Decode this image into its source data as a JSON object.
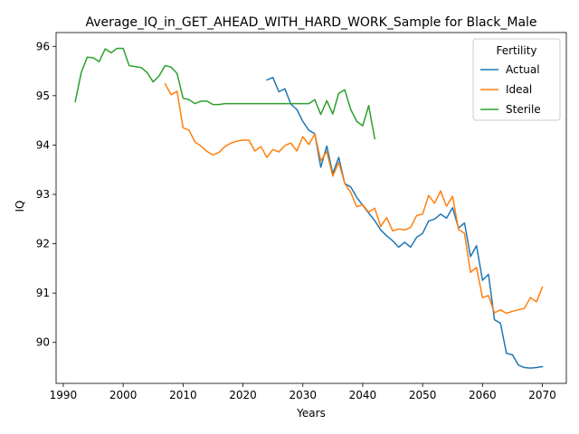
{
  "chart_data": {
    "type": "line",
    "title": "Average_IQ_in_GET_AHEAD_WITH_HARD_WORK_Sample for Black_Male",
    "xlabel": "Years",
    "ylabel": "IQ",
    "xlim": [
      1988.8,
      2074
    ],
    "ylim": [
      89.17,
      96.28
    ],
    "xticks": [
      1990,
      2000,
      2010,
      2020,
      2030,
      2040,
      2050,
      2060,
      2070
    ],
    "yticks": [
      90,
      91,
      92,
      93,
      94,
      95,
      96
    ],
    "grid": false,
    "legend": {
      "title": "Fertility",
      "position": "top-right"
    },
    "series": [
      {
        "name": "Actual",
        "color": "#1f77b4",
        "x": [
          2024,
          2025,
          2026,
          2027,
          2028,
          2029,
          2030,
          2031,
          2032,
          2033,
          2034,
          2035,
          2036,
          2037,
          2038,
          2039,
          2040,
          2041,
          2042,
          2043,
          2044,
          2045,
          2046,
          2047,
          2048,
          2049,
          2050,
          2051,
          2052,
          2053,
          2054,
          2055,
          2056,
          2057,
          2058,
          2059,
          2060,
          2061,
          2062,
          2063,
          2064,
          2065,
          2066,
          2067,
          2068,
          2069,
          2070
        ],
        "y": [
          95.32,
          95.37,
          95.08,
          95.14,
          94.83,
          94.72,
          94.48,
          94.3,
          94.23,
          93.55,
          93.98,
          93.42,
          93.75,
          93.22,
          93.15,
          92.94,
          92.78,
          92.62,
          92.47,
          92.28,
          92.16,
          92.06,
          91.93,
          92.03,
          91.93,
          92.13,
          92.21,
          92.46,
          92.5,
          92.6,
          92.52,
          92.73,
          92.32,
          92.42,
          91.74,
          91.96,
          91.26,
          91.38,
          90.46,
          90.39,
          89.78,
          89.75,
          89.54,
          89.49,
          89.48,
          89.49,
          89.51
        ]
      },
      {
        "name": "Ideal",
        "color": "#ff7f0e",
        "x": [
          2007,
          2008,
          2009,
          2010,
          2011,
          2012,
          2013,
          2014,
          2015,
          2016,
          2017,
          2018,
          2019,
          2020,
          2021,
          2022,
          2023,
          2024,
          2025,
          2026,
          2027,
          2028,
          2029,
          2030,
          2031,
          2032,
          2033,
          2034,
          2035,
          2036,
          2037,
          2038,
          2039,
          2040,
          2041,
          2042,
          2043,
          2044,
          2045,
          2046,
          2047,
          2048,
          2049,
          2050,
          2051,
          2052,
          2053,
          2054,
          2055,
          2056,
          2057,
          2058,
          2059,
          2060,
          2061,
          2062,
          2063,
          2064,
          2065,
          2066,
          2067,
          2068,
          2069,
          2070
        ],
        "y": [
          95.24,
          95.02,
          95.09,
          94.35,
          94.3,
          94.06,
          93.98,
          93.87,
          93.8,
          93.85,
          93.97,
          94.04,
          94.08,
          94.1,
          94.1,
          93.88,
          93.97,
          93.75,
          93.91,
          93.86,
          93.99,
          94.04,
          93.88,
          94.17,
          94.01,
          94.22,
          93.68,
          93.87,
          93.37,
          93.65,
          93.22,
          93.04,
          92.75,
          92.79,
          92.64,
          92.72,
          92.35,
          92.53,
          92.26,
          92.3,
          92.28,
          92.33,
          92.57,
          92.6,
          92.98,
          92.82,
          93.07,
          92.76,
          92.96,
          92.29,
          92.21,
          91.42,
          91.52,
          90.91,
          90.95,
          90.6,
          90.66,
          90.59,
          90.63,
          90.66,
          90.69,
          90.91,
          90.82,
          91.12
        ]
      },
      {
        "name": "Sterile",
        "color": "#2ca02c",
        "x": [
          1992,
          1993,
          1994,
          1995,
          1996,
          1997,
          1998,
          1999,
          2000,
          2001,
          2002,
          2003,
          2004,
          2005,
          2006,
          2007,
          2008,
          2009,
          2010,
          2011,
          2012,
          2013,
          2014,
          2015,
          2016,
          2017,
          2018,
          2019,
          2020,
          2021,
          2022,
          2023,
          2024,
          2025,
          2026,
          2027,
          2028,
          2029,
          2030,
          2031,
          2032,
          2033,
          2034,
          2035,
          2036,
          2037,
          2038,
          2039,
          2040,
          2041,
          2042
        ],
        "y": [
          94.88,
          95.47,
          95.78,
          95.77,
          95.69,
          95.95,
          95.87,
          95.96,
          95.96,
          95.61,
          95.59,
          95.57,
          95.47,
          95.28,
          95.4,
          95.61,
          95.58,
          95.45,
          94.95,
          94.92,
          94.84,
          94.89,
          94.89,
          94.82,
          94.82,
          94.84,
          94.84,
          94.84,
          94.84,
          94.84,
          94.84,
          94.84,
          94.84,
          94.84,
          94.84,
          94.84,
          94.84,
          94.84,
          94.84,
          94.84,
          94.92,
          94.62,
          94.9,
          94.63,
          95.05,
          95.12,
          94.72,
          94.48,
          94.39,
          94.8,
          94.13
        ]
      }
    ]
  }
}
